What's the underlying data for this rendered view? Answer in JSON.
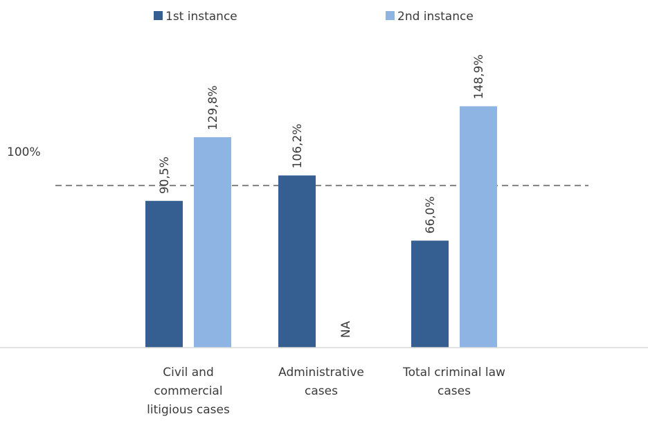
{
  "chart_data": {
    "type": "bar",
    "categories": [
      [
        "Civil and",
        "commercial",
        "litigious cases"
      ],
      [
        "Administrative",
        "cases"
      ],
      [
        "Total criminal law",
        "cases"
      ]
    ],
    "series": [
      {
        "name": "1st instance",
        "color": "#355e91",
        "values": [
          90.5,
          106.2,
          66.0
        ],
        "labels": [
          "90,5%",
          "106,2%",
          "66,0%"
        ]
      },
      {
        "name": "2nd instance",
        "color": "#8eb4e3",
        "values": [
          129.8,
          null,
          148.9
        ],
        "labels": [
          "129,8%",
          "NA",
          "148,9%"
        ]
      }
    ],
    "reference_line": {
      "value": 100,
      "label": "100%",
      "style": "dashed",
      "color": "#808080"
    },
    "legend_position": "top",
    "grid": false,
    "ylim": [
      0,
      180
    ]
  }
}
